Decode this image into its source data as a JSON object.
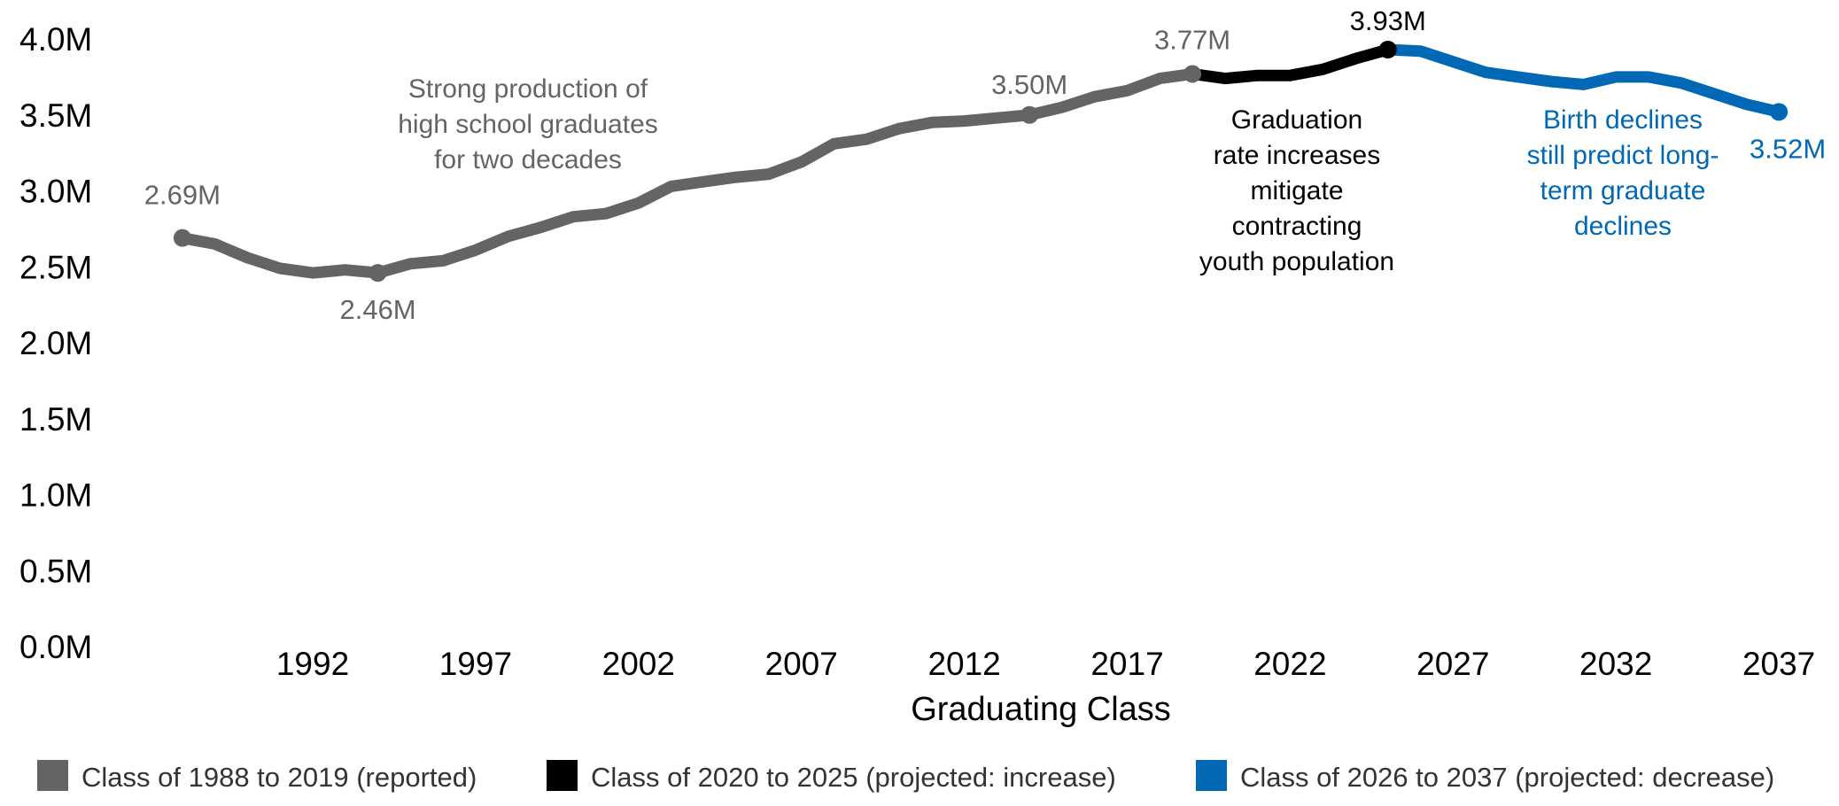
{
  "chart_data": {
    "type": "line",
    "title": "",
    "xlabel": "Graduating Class",
    "ylabel": "",
    "ylim": [
      0,
      4.0
    ],
    "xlim": [
      1988,
      2037
    ],
    "grid": false,
    "legend_position": "bottom",
    "y_ticks": [
      "0.0M",
      "0.5M",
      "1.0M",
      "1.5M",
      "2.0M",
      "2.5M",
      "3.0M",
      "3.5M",
      "4.0M"
    ],
    "x_ticks": [
      "1992",
      "1997",
      "2002",
      "2007",
      "2012",
      "2017",
      "2022",
      "2027",
      "2032",
      "2037"
    ],
    "series": [
      {
        "name": "Class of 1988 to 2019 (reported)",
        "color": "#636466",
        "x": [
          1988,
          1989,
          1990,
          1991,
          1992,
          1993,
          1994,
          1995,
          1996,
          1997,
          1998,
          1999,
          2000,
          2001,
          2002,
          2003,
          2004,
          2005,
          2006,
          2007,
          2008,
          2009,
          2010,
          2011,
          2012,
          2013,
          2014,
          2015,
          2016,
          2017,
          2018,
          2019
        ],
        "values": [
          2.69,
          2.65,
          2.56,
          2.49,
          2.46,
          2.48,
          2.46,
          2.52,
          2.54,
          2.61,
          2.7,
          2.76,
          2.83,
          2.85,
          2.92,
          3.03,
          3.06,
          3.09,
          3.11,
          3.19,
          3.31,
          3.34,
          3.41,
          3.45,
          3.46,
          3.48,
          3.5,
          3.55,
          3.62,
          3.66,
          3.74,
          3.77
        ]
      },
      {
        "name": "Class of 2020 to 2025 (projected: increase)",
        "color": "#000000",
        "x": [
          2019,
          2020,
          2021,
          2022,
          2023,
          2024,
          2025
        ],
        "values": [
          3.77,
          3.74,
          3.76,
          3.76,
          3.8,
          3.87,
          3.93
        ]
      },
      {
        "name": "Class of 2026 to 2037 (projected: decrease)",
        "color": "#0068b4",
        "x": [
          2025,
          2026,
          2027,
          2028,
          2029,
          2030,
          2031,
          2032,
          2033,
          2034,
          2035,
          2036,
          2037
        ],
        "values": [
          3.93,
          3.92,
          3.85,
          3.78,
          3.75,
          3.72,
          3.7,
          3.75,
          3.75,
          3.71,
          3.64,
          3.57,
          3.52
        ]
      }
    ],
    "point_labels": [
      {
        "x": 1988,
        "value": 2.69,
        "label": "2.69M",
        "color": "#636466"
      },
      {
        "x": 1994,
        "value": 2.46,
        "label": "2.46M",
        "color": "#636466"
      },
      {
        "x": 2014,
        "value": 3.5,
        "label": "3.50M",
        "color": "#636466"
      },
      {
        "x": 2019,
        "value": 3.77,
        "label": "3.77M",
        "color": "#636466"
      },
      {
        "x": 2025,
        "value": 3.93,
        "label": "3.93M",
        "color": "#000000"
      },
      {
        "x": 2037,
        "value": 3.52,
        "label": "3.52M",
        "color": "#0068b4"
      }
    ],
    "annotations": [
      {
        "lines": [
          "Strong production of",
          "high school graduates",
          "for two decades"
        ],
        "color": "#636466"
      },
      {
        "lines": [
          "Graduation",
          "rate increases",
          "mitigate",
          "contracting",
          "youth population"
        ],
        "color": "#000000"
      },
      {
        "lines": [
          "Birth declines",
          "still predict long-",
          "term graduate",
          "declines"
        ],
        "color": "#0068b4"
      }
    ]
  }
}
